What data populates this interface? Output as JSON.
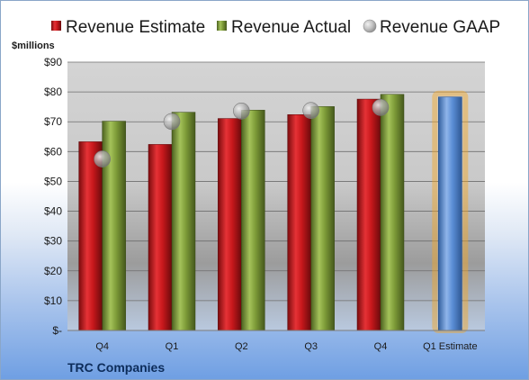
{
  "chart_data": {
    "type": "bar",
    "title": "",
    "ylabel": "$millions",
    "xlabel": "",
    "company": "TRC Companies",
    "categories": [
      "Q4",
      "Q1",
      "Q2",
      "Q3",
      "Q4",
      "Q1 Estimate"
    ],
    "ylim": [
      0,
      90
    ],
    "yticks": [
      0,
      10,
      20,
      30,
      40,
      50,
      60,
      70,
      80,
      90
    ],
    "ytick_labels": [
      "$-",
      "$10",
      "$20",
      "$30",
      "$40",
      "$50",
      "$60",
      "$70",
      "$80",
      "$90"
    ],
    "grid": true,
    "legend_position": "top",
    "series": [
      {
        "name": "Revenue Estimate",
        "kind": "bar",
        "color": "#c8181c",
        "values": [
          63.3,
          62.4,
          71.1,
          72.4,
          77.6,
          null
        ]
      },
      {
        "name": "Revenue Actual",
        "kind": "bar",
        "color": "#7d9b38",
        "values": [
          70.2,
          73.2,
          73.9,
          75.1,
          79.2,
          null
        ]
      },
      {
        "name": "Revenue GAAP",
        "kind": "marker",
        "color": "#a9a9a9",
        "values": [
          57.5,
          70.1,
          73.6,
          73.8,
          74.8,
          null
        ]
      },
      {
        "name": "Q1 Estimate",
        "kind": "bar",
        "color": "#5b8ed6",
        "highlight": "#f5a623",
        "values": [
          null,
          null,
          null,
          null,
          null,
          78.3
        ]
      }
    ]
  }
}
